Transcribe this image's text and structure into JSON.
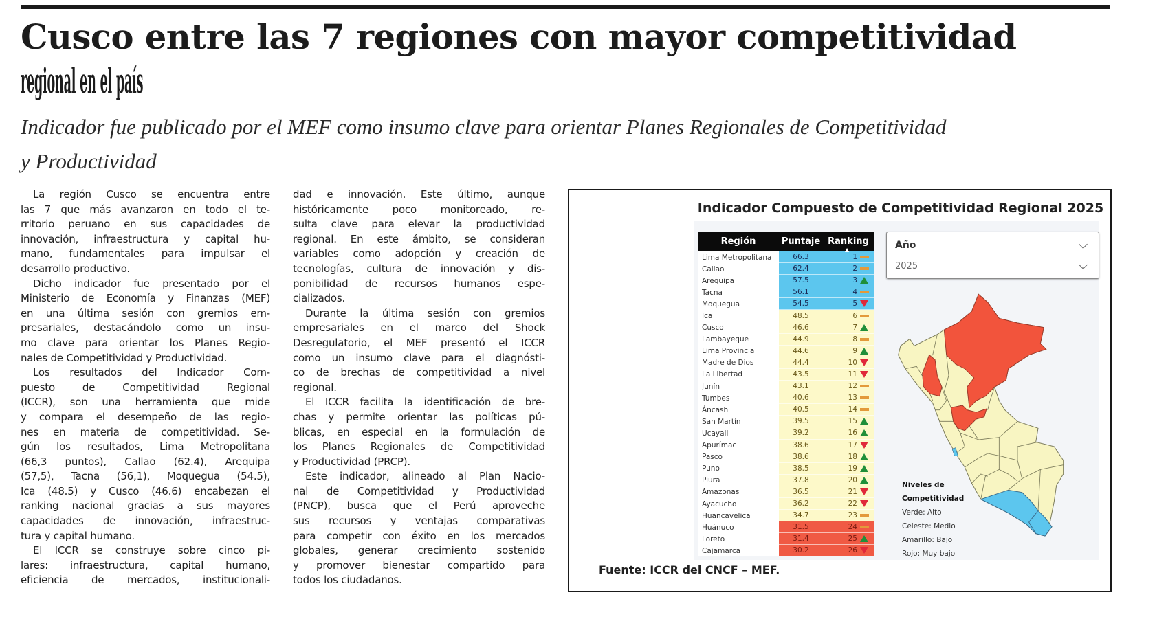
{
  "headline": {
    "line1": "Cusco entre las 7 regiones con mayor competitividad",
    "line2": "regional en el país"
  },
  "subtitle": {
    "line1": "Indicador fue publicado por el MEF como insumo clave para orientar Planes Regionales de Competitividad",
    "line2": "y Productividad"
  },
  "columns": [
    [
      {
        "indent": true,
        "ends": true,
        "lines": [
          "La región Cusco se encuentra entre",
          "las 7 que más avanzaron en todo el te-",
          "rritorio peruano en sus capacidades de",
          "innovación, infraestructura y capital hu-",
          "mano, fundamentales para impulsar el",
          "desarrollo productivo."
        ]
      },
      {
        "indent": true,
        "ends": true,
        "lines": [
          "Dicho indicador fue presentado por el",
          "Ministerio de Economía y Finanzas (MEF)",
          "en una última sesión con gremios em-",
          "presariales, destacándolo como un insu-",
          "mo clave para orientar los Planes Regio-",
          "nales de Competitividad y Productividad."
        ]
      },
      {
        "indent": true,
        "ends": true,
        "lines": [
          "Los resultados del Indicador Com-",
          "puesto de Competitividad Regional",
          "(ICCR), son una herramienta que mide",
          "y compara el desempeño de las regio-",
          "nes en materia de competitividad. Se-",
          "gún los resultados, Lima Metropolitana",
          "(66,3 puntos), Callao (62.4), Arequipa",
          "(57,5), Tacna (56,1), Moquegua (54.5),",
          "Ica (48.5) y Cusco (46.6) encabezan el",
          "ranking nacional gracias a sus mayores",
          "capacidades de innovación, infraestruc-",
          "tura y capital humano."
        ]
      },
      {
        "indent": true,
        "ends": false,
        "lines": [
          "El ICCR se construye sobre cinco pi-",
          "lares: infraestructura, capital humano,",
          "eficiencia de mercados, institucionali-"
        ]
      }
    ],
    [
      {
        "indent": false,
        "ends": true,
        "lines": [
          "dad e innovación. Este último, aunque",
          "históricamente poco monitoreado, re-",
          "sulta clave para elevar la productividad",
          "regional. En este ámbito, se consideran",
          "variables como adopción y creación de",
          "tecnologías, cultura de innovación y dis-",
          "ponibilidad de recursos humanos espe-",
          "cializados."
        ]
      },
      {
        "indent": true,
        "ends": true,
        "lines": [
          "Durante la última sesión con gremios",
          "empresariales en el marco del Shock",
          "Desregulatorio, el MEF presentó el ICCR",
          "como un insumo clave para el diagnósti-",
          "co de brechas de competitividad a nivel",
          "regional."
        ]
      },
      {
        "indent": true,
        "ends": true,
        "lines": [
          "El ICCR facilita la identificación de bre-",
          "chas y permite orientar las políticas pú-",
          "blicas, en especial en la formulación de",
          "los Planes Regionales de Competitividad",
          "y Productividad (PRCP)."
        ]
      },
      {
        "indent": true,
        "ends": true,
        "lines": [
          "Este indicador, alineado al Plan Nacio-",
          "nal de Competitividad y Productividad",
          "(PNCP), busca que el Perú aproveche",
          "sus recursos y ventajas comparativas",
          "para competir con éxito en los mercados",
          "globales, generar crecimiento sostenido",
          "y promover bienestar compartido para",
          "todos los ciudadanos."
        ]
      }
    ]
  ],
  "figure": {
    "title": "Indicador Compuesto de Competitividad Regional 2025",
    "table": {
      "headers": {
        "region": "Región",
        "score": "Puntaje",
        "rank": "Ranking"
      },
      "rows": [
        {
          "region": "Lima Metropolitana",
          "score": "66.3",
          "rank": "1",
          "trend": "same",
          "level": "blue"
        },
        {
          "region": "Callao",
          "score": "62.4",
          "rank": "2",
          "trend": "same",
          "level": "blue"
        },
        {
          "region": "Arequipa",
          "score": "57.5",
          "rank": "3",
          "trend": "up",
          "level": "blue"
        },
        {
          "region": "Tacna",
          "score": "56.1",
          "rank": "4",
          "trend": "same",
          "level": "blue"
        },
        {
          "region": "Moquegua",
          "score": "54.5",
          "rank": "5",
          "trend": "down",
          "level": "blue"
        },
        {
          "region": "Ica",
          "score": "48.5",
          "rank": "6",
          "trend": "same",
          "level": "yellow"
        },
        {
          "region": "Cusco",
          "score": "46.6",
          "rank": "7",
          "trend": "up",
          "level": "yellow"
        },
        {
          "region": "Lambayeque",
          "score": "44.9",
          "rank": "8",
          "trend": "same",
          "level": "yellow"
        },
        {
          "region": "Lima Provincia",
          "score": "44.6",
          "rank": "9",
          "trend": "up",
          "level": "yellow"
        },
        {
          "region": "Madre de Dios",
          "score": "44.4",
          "rank": "10",
          "trend": "down",
          "level": "yellow"
        },
        {
          "region": "La Libertad",
          "score": "43.5",
          "rank": "11",
          "trend": "down",
          "level": "yellow"
        },
        {
          "region": "Junín",
          "score": "43.1",
          "rank": "12",
          "trend": "same",
          "level": "yellow"
        },
        {
          "region": "Tumbes",
          "score": "40.6",
          "rank": "13",
          "trend": "same",
          "level": "yellow"
        },
        {
          "region": "Áncash",
          "score": "40.5",
          "rank": "14",
          "trend": "same",
          "level": "yellow"
        },
        {
          "region": "San Martín",
          "score": "39.5",
          "rank": "15",
          "trend": "up",
          "level": "yellow"
        },
        {
          "region": "Ucayali",
          "score": "39.2",
          "rank": "16",
          "trend": "up",
          "level": "yellow"
        },
        {
          "region": "Apurímac",
          "score": "38.6",
          "rank": "17",
          "trend": "down",
          "level": "yellow"
        },
        {
          "region": "Pasco",
          "score": "38.6",
          "rank": "18",
          "trend": "up",
          "level": "yellow"
        },
        {
          "region": "Puno",
          "score": "38.5",
          "rank": "19",
          "trend": "up",
          "level": "yellow"
        },
        {
          "region": "Piura",
          "score": "37.8",
          "rank": "20",
          "trend": "up",
          "level": "yellow"
        },
        {
          "region": "Amazonas",
          "score": "36.5",
          "rank": "21",
          "trend": "down",
          "level": "yellow"
        },
        {
          "region": "Ayacucho",
          "score": "36.2",
          "rank": "22",
          "trend": "down",
          "level": "yellow"
        },
        {
          "region": "Huancavelica",
          "score": "34.7",
          "rank": "23",
          "trend": "same",
          "level": "yellow"
        },
        {
          "region": "Huánuco",
          "score": "31.5",
          "rank": "24",
          "trend": "same",
          "level": "red"
        },
        {
          "region": "Loreto",
          "score": "31.4",
          "rank": "25",
          "trend": "up",
          "level": "red"
        },
        {
          "region": "Cajamarca",
          "score": "30.2",
          "rank": "26",
          "trend": "down",
          "level": "red"
        }
      ]
    },
    "filter": {
      "label": "Año",
      "value": "2025"
    },
    "legend": {
      "title_line1": "Niveles de",
      "title_line2": "Competitividad",
      "items": [
        "Verde: Alto",
        "Celeste: Medio",
        "Amarillo: Bajo",
        "Rojo: Muy bajo"
      ]
    },
    "colors": {
      "blue": "#5cc6ee",
      "yellow": "#f8f5c2",
      "red": "#f2543c"
    },
    "source": "Fuente: ICCR del CNCF – MEF."
  }
}
